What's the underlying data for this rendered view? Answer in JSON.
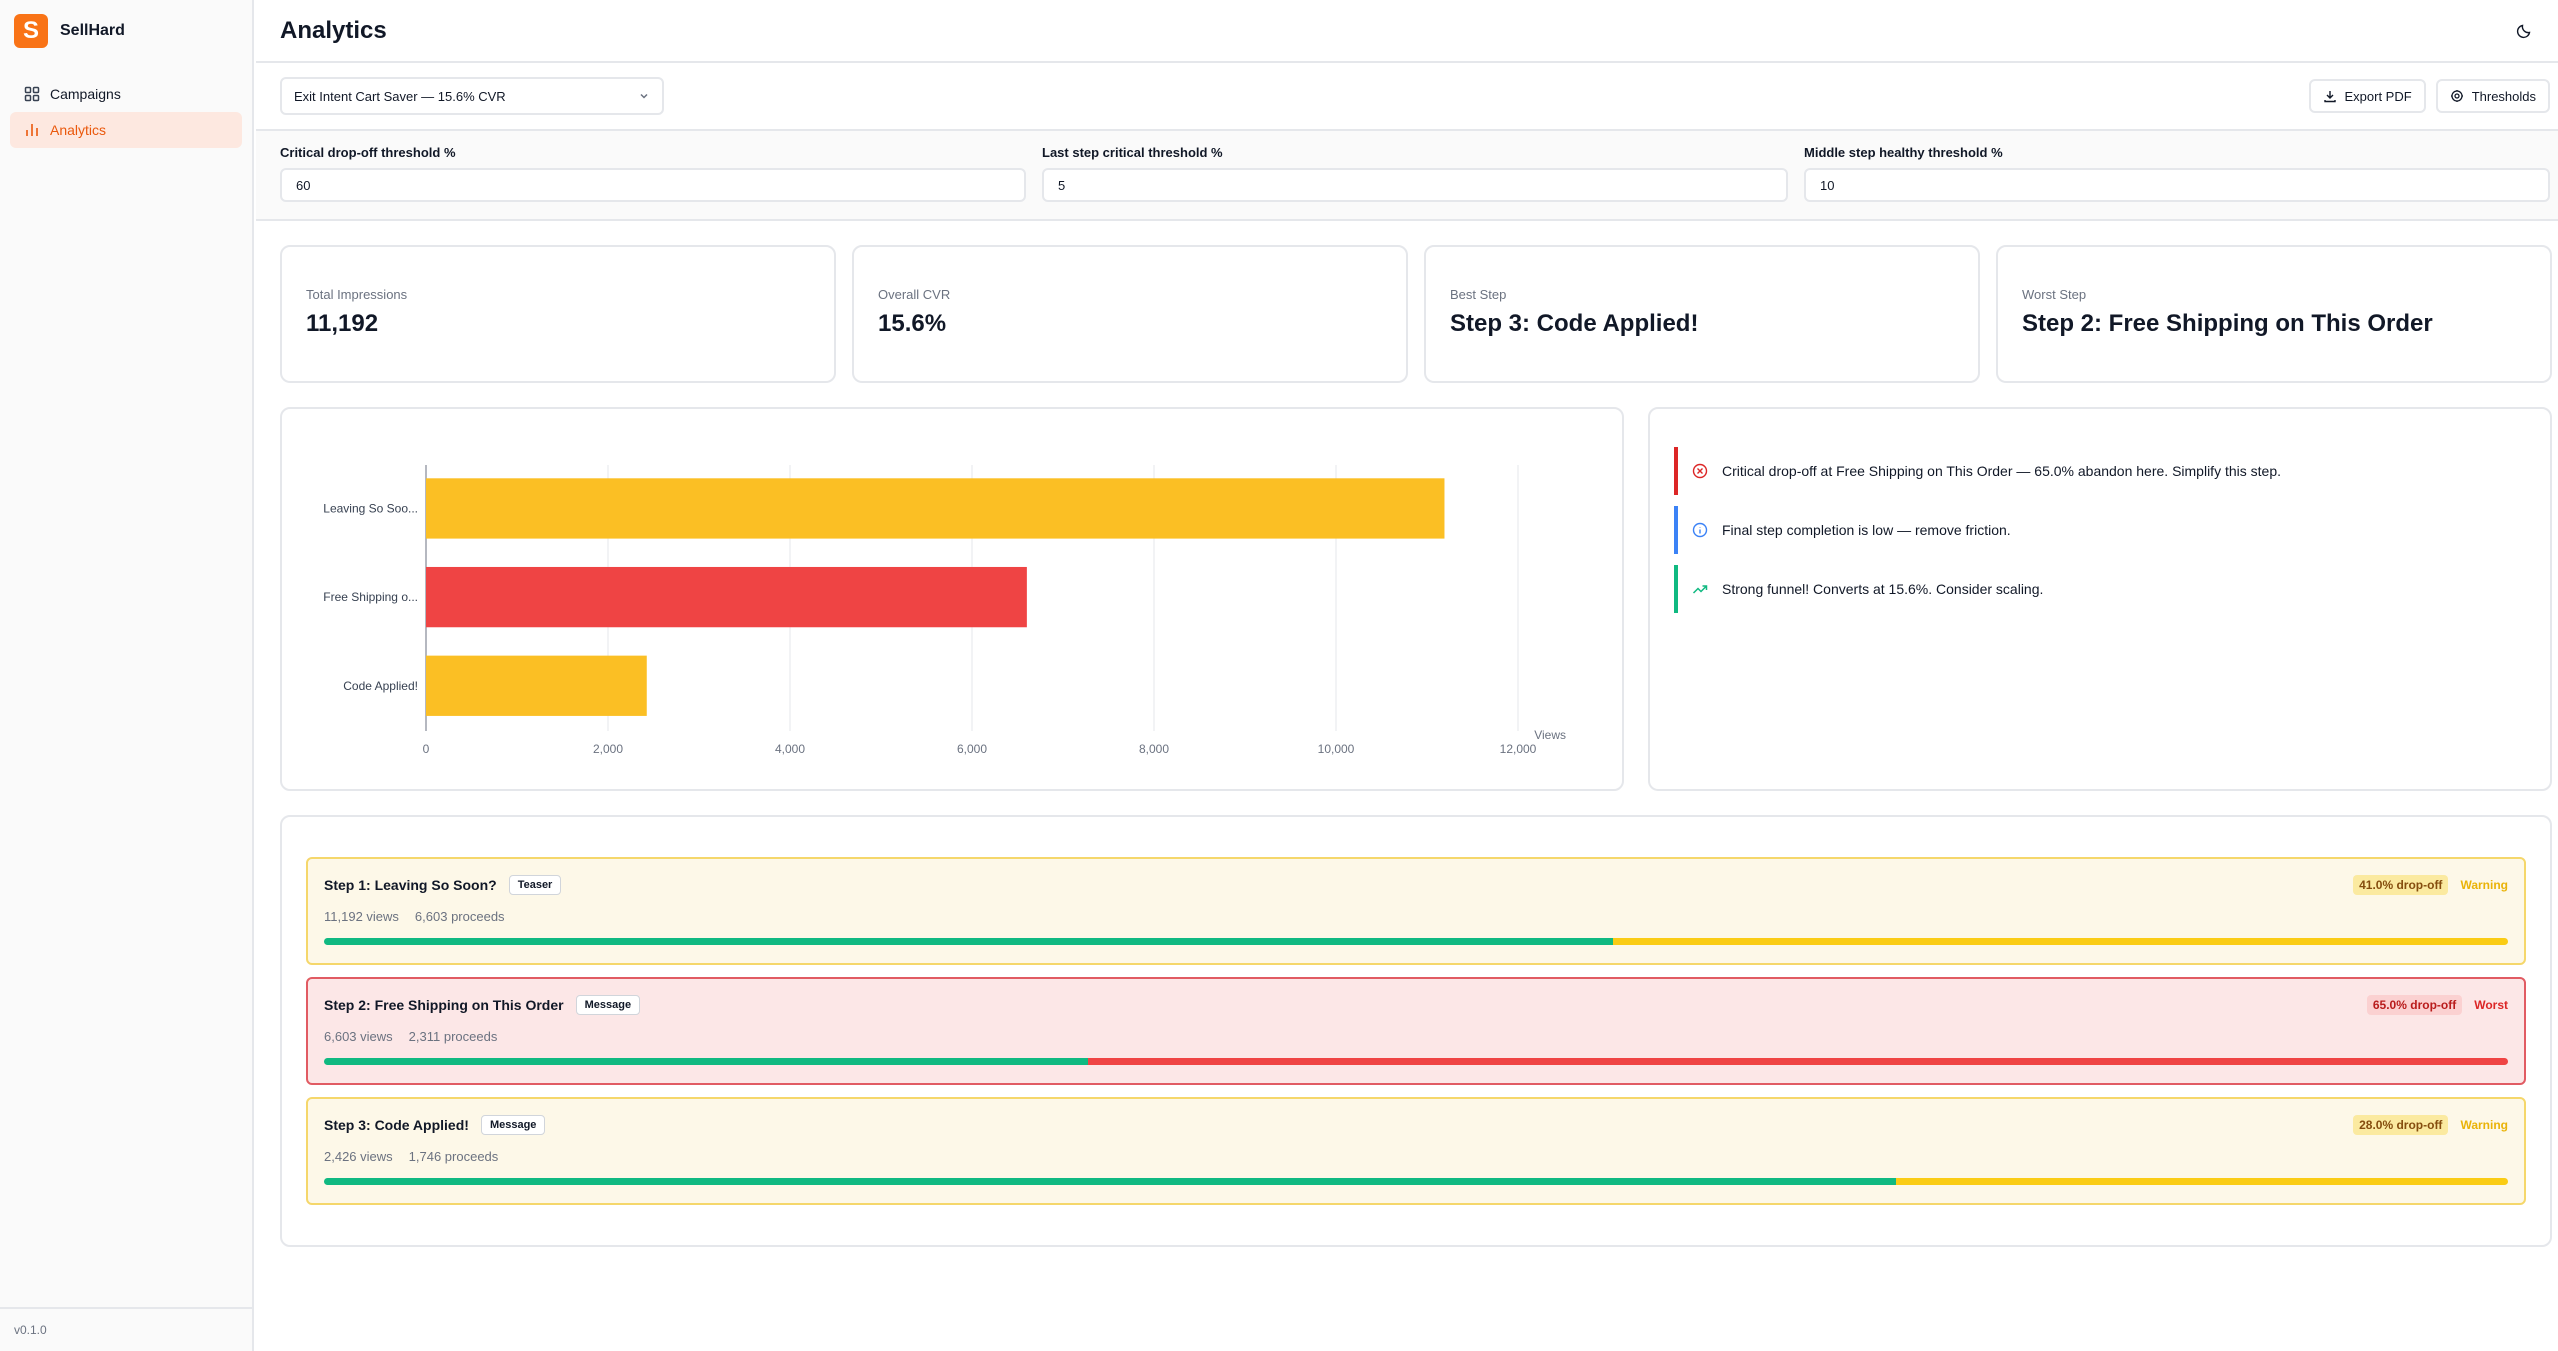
{
  "brand": {
    "name": "SellHard",
    "logo_letter": "S"
  },
  "sidebar": {
    "items": [
      {
        "label": "Campaigns",
        "icon": "grid-icon",
        "active": false
      },
      {
        "label": "Analytics",
        "icon": "bar-chart-icon",
        "active": true
      }
    ],
    "version": "v0.1.0"
  },
  "header": {
    "title": "Analytics",
    "theme_icon": "moon-icon"
  },
  "controls": {
    "campaign_select": "Exit Intent Cart Saver — 15.6% CVR",
    "export_label": "Export PDF",
    "thresholds_label": "Thresholds"
  },
  "thresholds": [
    {
      "label": "Critical drop-off threshold %",
      "value": "60"
    },
    {
      "label": "Last step critical threshold %",
      "value": "5"
    },
    {
      "label": "Middle step healthy threshold %",
      "value": "10"
    }
  ],
  "kpis": [
    {
      "label": "Total Impressions",
      "value": "11,192"
    },
    {
      "label": "Overall CVR",
      "value": "15.6%"
    },
    {
      "label": "Best Step",
      "value": "Step 3: Code Applied!"
    },
    {
      "label": "Worst Step",
      "value": "Step 2: Free Shipping on This Order"
    }
  ],
  "chart_data": {
    "type": "bar",
    "orientation": "horizontal",
    "categories": [
      "Leaving So Soo...",
      "Free Shipping o...",
      "Code Applied!"
    ],
    "values": [
      11192,
      6603,
      2426
    ],
    "colors": [
      "#fbbf24",
      "#ef4444",
      "#fbbf24"
    ],
    "xlabel": "Views",
    "xlim": [
      0,
      12000
    ],
    "xticks": [
      "0",
      "2,000",
      "4,000",
      "6,000",
      "8,000",
      "10,000",
      "12,000"
    ],
    "grid": true
  },
  "insights": [
    {
      "type": "critical",
      "icon": "x-circle-icon",
      "color": "#dc2626",
      "text": "Critical drop-off at Free Shipping on This Order — 65.0% abandon here. Simplify this step."
    },
    {
      "type": "info",
      "icon": "info-icon",
      "color": "#3b82f6",
      "text": "Final step completion is low — remove friction."
    },
    {
      "type": "success",
      "icon": "trending-up-icon",
      "color": "#10b981",
      "text": "Strong funnel! Converts at 15.6%. Consider scaling."
    }
  ],
  "steps": [
    {
      "title": "Step 1: Leaving So Soon?",
      "tag": "Teaser",
      "views": "11,192 views",
      "proceeds": "6,603 proceeds",
      "dropoff": "41.0% drop-off",
      "status": "Warning",
      "kind": "warning",
      "proceed_fraction": 0.59
    },
    {
      "title": "Step 2: Free Shipping on This Order",
      "tag": "Message",
      "views": "6,603 views",
      "proceeds": "2,311 proceeds",
      "dropoff": "65.0% drop-off",
      "status": "Worst",
      "kind": "worst",
      "proceed_fraction": 0.35
    },
    {
      "title": "Step 3: Code Applied!",
      "tag": "Message",
      "views": "2,426 views",
      "proceeds": "1,746 proceeds",
      "dropoff": "28.0% drop-off",
      "status": "Warning",
      "kind": "warning",
      "proceed_fraction": 0.72
    }
  ]
}
